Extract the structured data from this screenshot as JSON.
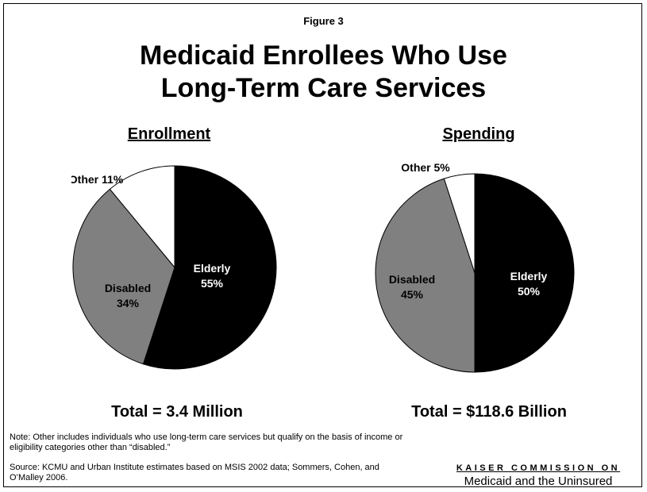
{
  "figure_label": "Figure 3",
  "title_line1": "Medicaid Enrollees Who Use",
  "title_line2": "Long-Term Care Services",
  "chart_data": [
    {
      "type": "pie",
      "title": "Enrollment",
      "total": "Total = 3.4 Million",
      "slices": [
        {
          "label": "Elderly",
          "value": 55,
          "display": "55%",
          "color": "#000000",
          "text_color": "#ffffff"
        },
        {
          "label": "Disabled",
          "value": 34,
          "display": "34%",
          "color": "#808080",
          "text_color": "#000000"
        },
        {
          "label": "Other",
          "value": 11,
          "display": "11%",
          "color": "#ffffff",
          "text_color": "#000000"
        }
      ]
    },
    {
      "type": "pie",
      "title": "Spending",
      "total": "Total = $118.6 Billion",
      "slices": [
        {
          "label": "Elderly",
          "value": 50,
          "display": "50%",
          "color": "#000000",
          "text_color": "#ffffff"
        },
        {
          "label": "Disabled",
          "value": 45,
          "display": "45%",
          "color": "#808080",
          "text_color": "#000000"
        },
        {
          "label": "Other",
          "value": 5,
          "display": "5%",
          "color": "#ffffff",
          "text_color": "#000000"
        }
      ]
    }
  ],
  "note": "Note: Other includes individuals who use long-term care services but qualify on the basis of income or eligibility categories other than “disabled.”",
  "source": "Source: KCMU and Urban Institute estimates based on MSIS 2002 data; Sommers, Cohen, and O’Malley 2006.",
  "logo": {
    "line1": "KAISER COMMISSION ON",
    "line2": "Medicaid and the Uninsured"
  }
}
